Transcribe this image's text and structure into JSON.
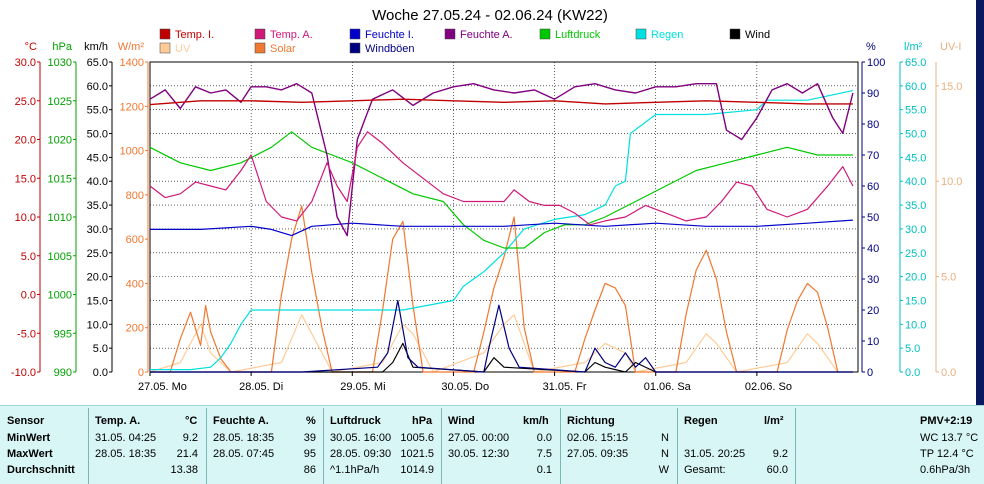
{
  "title": "Woche 27.05.24 - 02.06.24 (KW22)",
  "colors": {
    "temp_i": "#c00000",
    "temp_a": "#d01878",
    "feuchte_i": "#0000c8",
    "feuchte_a": "#800080",
    "luftdruck": "#00c800",
    "regen": "#00e0e0",
    "wind": "#000000",
    "uv": "#ffcc99",
    "solar": "#f07830",
    "windboeen": "#000080"
  },
  "legend": [
    {
      "key": "temp_i",
      "label": "Temp. I.",
      "color": "#c00000"
    },
    {
      "key": "temp_a",
      "label": "Temp. A.",
      "color": "#d01878"
    },
    {
      "key": "feuchte_i",
      "label": "Feuchte I.",
      "color": "#0000c8"
    },
    {
      "key": "feuchte_a",
      "label": "Feuchte A.",
      "color": "#800080"
    },
    {
      "key": "luftdruck",
      "label": "Luftdruck",
      "color": "#00c800"
    },
    {
      "key": "regen",
      "label": "Regen",
      "color": "#00e0e0"
    },
    {
      "key": "wind",
      "label": "Wind",
      "color": "#000000"
    },
    {
      "key": "uv",
      "label": "UV",
      "color": "#ffcc99"
    },
    {
      "key": "solar",
      "label": "Solar",
      "color": "#f07830"
    },
    {
      "key": "windboeen",
      "label": "Windböen",
      "color": "#000080"
    }
  ],
  "chart_data": {
    "type": "line",
    "title": "Woche 27.05.24 - 02.06.24 (KW22)",
    "x_range": [
      0,
      7
    ],
    "x_ticks": [
      "27.05. Mo",
      "28.05. Di",
      "29.05. Mi",
      "30.05. Do",
      "31.05. Fr",
      "01.06. Sa",
      "02.06. So"
    ],
    "grid": true,
    "axes": [
      {
        "unit": "°C",
        "min": -10,
        "max": 30,
        "ticks": [
          "30.0",
          "25.0",
          "20.0",
          "15.0",
          "10.0",
          "5.0",
          "0.0",
          "-5.0",
          "-10.0"
        ],
        "color": "#c00000"
      },
      {
        "unit": "hPa",
        "min": 990,
        "max": 1030,
        "ticks": [
          "1030",
          "1025",
          "1020",
          "1015",
          "1010",
          "1005",
          "1000",
          "995",
          "990"
        ],
        "color": "#00a000"
      },
      {
        "unit": "km/h",
        "min": 0,
        "max": 65,
        "ticks": [
          "65.0",
          "60.0",
          "55.0",
          "50.0",
          "45.0",
          "40.0",
          "35.0",
          "30.0",
          "25.0",
          "20.0",
          "15.0",
          "10.0",
          "5.0",
          "0.0"
        ],
        "color": "#000000"
      },
      {
        "unit": "W/m²",
        "min": 0,
        "max": 1400,
        "ticks": [
          "1400",
          "1200",
          "1000",
          "800",
          "600",
          "400",
          "200",
          "0"
        ],
        "color": "#f07830"
      },
      {
        "unit": "%",
        "min": 0,
        "max": 100,
        "ticks": [
          "100",
          "90",
          "80",
          "70",
          "60",
          "50",
          "40",
          "30",
          "20",
          "10",
          "0"
        ],
        "color": "#000080"
      },
      {
        "unit": "l/m²",
        "min": 0,
        "max": 65,
        "ticks": [
          "65.0",
          "60.0",
          "55.0",
          "50.0",
          "45.0",
          "40.0",
          "35.0",
          "30.0",
          "25.0",
          "20.0",
          "15.0",
          "10.0",
          "5.0",
          "0.0"
        ],
        "color": "#00c0c0"
      },
      {
        "unit": "UV-I",
        "min": 0,
        "max": 16.25,
        "ticks": [
          "15.0",
          "10.0",
          "5.0",
          "0.0"
        ],
        "color": "#ffcc99"
      }
    ],
    "series": [
      {
        "name": "Temp. I.",
        "key": "temp_i",
        "axis": "°C",
        "x": [
          0,
          0.5,
          1,
          1.5,
          2,
          2.5,
          3,
          3.5,
          4,
          4.5,
          5,
          5.5,
          6,
          6.5,
          6.95
        ],
        "y": [
          24.5,
          25,
          25,
          24.8,
          25,
          25.2,
          25,
          24.8,
          25,
          24.6,
          24.8,
          25,
          24.8,
          24.6,
          24.6
        ]
      },
      {
        "name": "Temp. A.",
        "key": "temp_a",
        "axis": "°C",
        "x": [
          0,
          0.15,
          0.3,
          0.45,
          0.6,
          0.75,
          0.9,
          1.0,
          1.15,
          1.3,
          1.45,
          1.6,
          1.75,
          1.85,
          1.95,
          2.05,
          2.15,
          2.3,
          2.5,
          2.7,
          2.9,
          3.1,
          3.3,
          3.5,
          3.6,
          3.75,
          3.9,
          4.05,
          4.2,
          4.35,
          4.5,
          4.7,
          4.9,
          5.1,
          5.3,
          5.5,
          5.65,
          5.8,
          5.95,
          6.1,
          6.3,
          6.5,
          6.7,
          6.85,
          6.95
        ],
        "y": [
          14,
          12.5,
          13,
          14.5,
          14,
          13.5,
          16,
          18,
          12,
          10,
          9.5,
          12,
          17,
          14,
          12,
          19,
          21,
          19.5,
          17,
          15,
          13,
          12,
          12,
          12,
          13.5,
          12,
          11.5,
          11.5,
          10.5,
          9,
          9.5,
          10,
          11.5,
          10.5,
          9.5,
          10,
          12,
          14.5,
          14,
          11,
          10,
          11,
          14,
          16.5,
          14
        ]
      },
      {
        "name": "Feuchte I.",
        "key": "feuchte_i",
        "axis": "%",
        "x": [
          0,
          0.5,
          1,
          1.2,
          1.4,
          1.6,
          2,
          2.5,
          3,
          3.5,
          4,
          4.5,
          5,
          5.5,
          6,
          6.5,
          6.95
        ],
        "y": [
          46,
          46,
          47,
          46,
          44,
          47,
          48,
          47,
          47,
          47,
          48,
          47,
          48,
          47,
          47,
          48,
          49
        ]
      },
      {
        "name": "Feuchte A.",
        "key": "feuchte_a",
        "axis": "%",
        "x": [
          0,
          0.15,
          0.3,
          0.45,
          0.6,
          0.75,
          0.9,
          1.0,
          1.15,
          1.3,
          1.45,
          1.6,
          1.75,
          1.85,
          1.95,
          2.05,
          2.2,
          2.4,
          2.6,
          2.8,
          3.0,
          3.2,
          3.4,
          3.6,
          3.8,
          4.0,
          4.2,
          4.4,
          4.6,
          4.8,
          5.0,
          5.2,
          5.4,
          5.6,
          5.7,
          5.85,
          6.0,
          6.15,
          6.3,
          6.45,
          6.6,
          6.75,
          6.85,
          6.95
        ],
        "y": [
          88,
          91,
          85,
          92,
          90,
          91,
          87,
          92,
          92,
          91,
          93,
          90,
          70,
          50,
          44,
          75,
          88,
          91,
          86,
          90,
          92,
          93,
          91,
          90,
          91,
          88,
          92,
          93,
          91,
          90,
          92,
          92,
          93,
          93,
          78,
          75,
          82,
          91,
          93,
          90,
          93,
          82,
          77,
          90
        ]
      },
      {
        "name": "Luftdruck",
        "key": "luftdruck",
        "axis": "hPa",
        "x": [
          0,
          0.3,
          0.6,
          0.9,
          1.2,
          1.4,
          1.6,
          1.8,
          2.0,
          2.3,
          2.6,
          2.9,
          3.1,
          3.3,
          3.5,
          3.7,
          3.9,
          4.1,
          4.3,
          4.5,
          4.8,
          5.1,
          5.4,
          5.7,
          6.0,
          6.3,
          6.6,
          6.95
        ],
        "y": [
          1019,
          1017,
          1016,
          1017,
          1019,
          1021,
          1019,
          1018,
          1017,
          1015,
          1013,
          1012,
          1009,
          1007,
          1006,
          1006,
          1008,
          1009,
          1009,
          1010,
          1012,
          1014,
          1016,
          1017,
          1018,
          1019,
          1018,
          1018
        ]
      },
      {
        "name": "Regen",
        "key": "regen",
        "axis": "l/m²",
        "x": [
          0,
          0.4,
          0.6,
          0.7,
          0.8,
          0.9,
          1.0,
          1.5,
          2.0,
          2.5,
          3.0,
          3.1,
          3.3,
          3.5,
          3.7,
          4.0,
          4.3,
          4.5,
          4.6,
          4.7,
          4.75,
          5.0,
          5.5,
          6.0,
          6.1,
          6.5,
          6.95
        ],
        "y": [
          0.5,
          0.5,
          1,
          3,
          6,
          10,
          13,
          13,
          13,
          13,
          15,
          18,
          21,
          25,
          30,
          32,
          33,
          35,
          39,
          40,
          50,
          54,
          54,
          55,
          57,
          57,
          59
        ]
      },
      {
        "name": "Wind",
        "key": "wind",
        "axis": "km/h",
        "x": [
          0,
          1.5,
          2.3,
          2.4,
          2.5,
          2.6,
          3.3,
          3.4,
          3.5,
          4.3,
          4.4,
          4.5,
          4.7,
          4.8,
          5,
          6,
          6.95
        ],
        "y": [
          0,
          0,
          0,
          2,
          6,
          1,
          0,
          3,
          1,
          0,
          2,
          1,
          0,
          2,
          0,
          0,
          0
        ]
      },
      {
        "name": "Windböen",
        "key": "windboeen",
        "axis": "km/h",
        "x": [
          0,
          1.5,
          2.25,
          2.35,
          2.45,
          2.55,
          2.65,
          3.3,
          3.35,
          3.45,
          3.55,
          3.65,
          4.3,
          4.4,
          4.5,
          4.6,
          4.7,
          4.8,
          4.9,
          5,
          6,
          6.95
        ],
        "y": [
          0,
          0,
          1,
          4,
          15,
          3,
          1,
          0,
          5,
          14,
          5,
          1,
          0,
          5,
          2,
          1,
          4,
          1,
          3,
          0,
          0,
          0
        ]
      },
      {
        "name": "Solar",
        "key": "solar",
        "axis": "W/m²",
        "x": [
          0,
          0.2,
          0.3,
          0.4,
          0.5,
          0.55,
          0.6,
          0.7,
          0.8,
          1.2,
          1.3,
          1.4,
          1.5,
          1.6,
          1.7,
          1.8,
          2.2,
          2.3,
          2.4,
          2.5,
          2.6,
          2.7,
          3.2,
          3.3,
          3.4,
          3.5,
          3.6,
          3.7,
          3.8,
          4.2,
          4.3,
          4.4,
          4.5,
          4.6,
          4.7,
          4.8,
          5.2,
          5.3,
          5.4,
          5.5,
          5.6,
          5.7,
          5.8,
          6.2,
          6.3,
          6.4,
          6.5,
          6.6,
          6.7,
          6.8
        ],
        "y": [
          0,
          0,
          150,
          270,
          120,
          300,
          180,
          60,
          0,
          0,
          350,
          600,
          750,
          450,
          200,
          0,
          0,
          280,
          600,
          680,
          300,
          0,
          0,
          180,
          380,
          520,
          700,
          200,
          0,
          0,
          150,
          280,
          400,
          380,
          300,
          0,
          0,
          260,
          460,
          550,
          420,
          180,
          0,
          0,
          190,
          320,
          400,
          360,
          200,
          0
        ]
      },
      {
        "name": "UV",
        "key": "uv",
        "axis": "UV-I",
        "x": [
          0,
          0.3,
          0.4,
          0.5,
          0.6,
          0.8,
          1.3,
          1.5,
          1.6,
          1.8,
          2.3,
          2.5,
          2.6,
          2.8,
          3.3,
          3.5,
          3.6,
          3.8,
          4.3,
          4.5,
          4.7,
          4.8,
          5.3,
          5.5,
          5.6,
          5.8,
          6.3,
          6.5,
          6.6,
          6.8
        ],
        "y": [
          0,
          0.5,
          1.5,
          2.5,
          1,
          0,
          0.5,
          3,
          2,
          0,
          0.5,
          2.5,
          2,
          0,
          1,
          2.5,
          3,
          0,
          0.5,
          1.5,
          1,
          0,
          0.5,
          2,
          1.5,
          0,
          0.5,
          2,
          1.5,
          0
        ]
      }
    ]
  },
  "stats": {
    "headers": {
      "sensor": "Sensor",
      "temp_a": "Temp. A.",
      "temp_a_unit": "°C",
      "feuchte_a": "Feuchte A.",
      "feuchte_a_unit": "%",
      "luftdruck": "Luftdruck",
      "luftdruck_unit": "hPa",
      "wind": "Wind",
      "wind_unit": "km/h",
      "richtung": "Richtung",
      "regen": "Regen",
      "regen_unit": "l/m²",
      "pmv": "PMV+2:19"
    },
    "rows": [
      {
        "label": "MinWert",
        "temp_a_time": "31.05.  04:25",
        "temp_a_val": "9.2",
        "feuchte_a_time": "28.05.  18:35",
        "feuchte_a_val": "39",
        "luftdruck_time": "30.05.  16:00",
        "luftdruck_val": "1005.6",
        "wind_time": "27.05.  00:00",
        "wind_val": "0.0",
        "richtung_time": "02.06.  15:15",
        "richtung_val": "N",
        "regen_time": "",
        "regen_val": "",
        "extra": "WC 13.7 °C"
      },
      {
        "label": "MaxWert",
        "temp_a_time": "28.05.  18:35",
        "temp_a_val": "21.4",
        "feuchte_a_time": "28.05.  07:45",
        "feuchte_a_val": "95",
        "luftdruck_time": "28.05.  09:30",
        "luftdruck_val": "1021.5",
        "wind_time": "30.05.  12:30",
        "wind_val": "7.5",
        "richtung_time": "27.05.  09:35",
        "richtung_val": "N",
        "regen_time": "31.05.  20:25",
        "regen_val": "9.2",
        "extra": "TP 12.4 °C"
      },
      {
        "label": "Durchschnitt",
        "temp_a_time": "",
        "temp_a_val": "13.38",
        "feuchte_a_time": "",
        "feuchte_a_val": "86",
        "luftdruck_time": "^1.1hPa/h",
        "luftdruck_val": "1014.9",
        "wind_time": "",
        "wind_val": "0.1",
        "richtung_time": "",
        "richtung_val": "W",
        "regen_time": "Gesamt:",
        "regen_val": "60.0",
        "extra": "0.6hPa/3h"
      }
    ]
  }
}
